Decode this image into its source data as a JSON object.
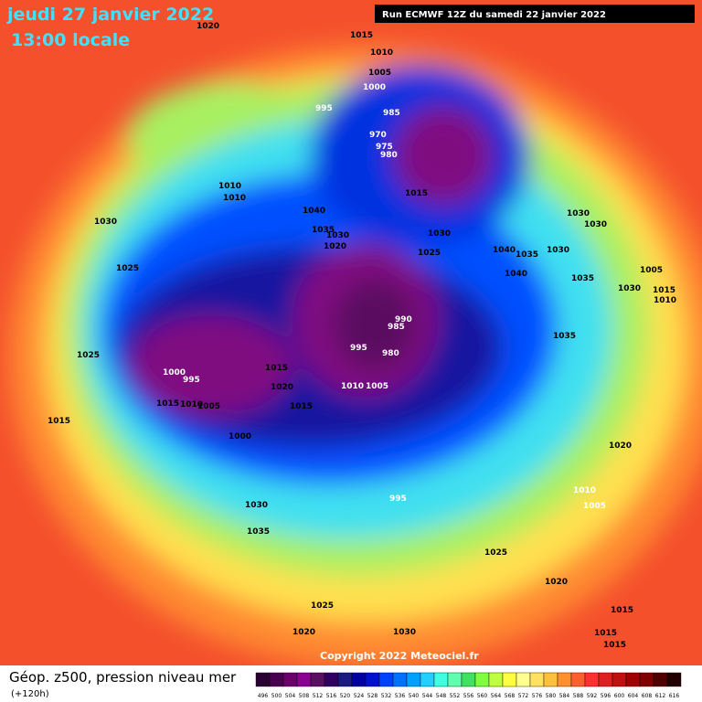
{
  "header": {
    "date": "jeudi 27 janvier 2022",
    "time": "13:00 locale",
    "run": "Run ECMWF 12Z du samedi 22 janvier 2022"
  },
  "map": {
    "pressure_labels": [
      "1020",
      "1015",
      "1010",
      "1005",
      "995",
      "1000",
      "985",
      "970",
      "975",
      "980",
      "1015",
      "1010",
      "1010",
      "1040",
      "1035",
      "1030",
      "1020",
      "1025",
      "1030",
      "1040",
      "1035",
      "1030",
      "1040",
      "1030",
      "1030",
      "1025",
      "990",
      "985",
      "995",
      "980",
      "1000",
      "995",
      "1015",
      "1010",
      "1005",
      "1000",
      "1015",
      "1020",
      "1015",
      "1030",
      "1025",
      "1015",
      "1010",
      "1005",
      "1035",
      "1035",
      "1030",
      "1015",
      "995",
      "1010",
      "1005",
      "1025",
      "1020",
      "1015",
      "1030",
      "1035",
      "1025",
      "1020",
      "1030",
      "1015",
      "1015",
      "1020",
      "1005",
      "1010"
    ],
    "copyright": "Copyright 2022 Meteociel.fr"
  },
  "legend": {
    "title": "Géop. z500, pression niveau mer",
    "lead": "(+120h)",
    "scale": [
      "496",
      "500",
      "504",
      "508",
      "512",
      "516",
      "520",
      "524",
      "528",
      "532",
      "536",
      "540",
      "544",
      "548",
      "552",
      "556",
      "560",
      "564",
      "568",
      "572",
      "576",
      "580",
      "584",
      "588",
      "592",
      "596",
      "600",
      "604",
      "608",
      "612",
      "616"
    ]
  }
}
